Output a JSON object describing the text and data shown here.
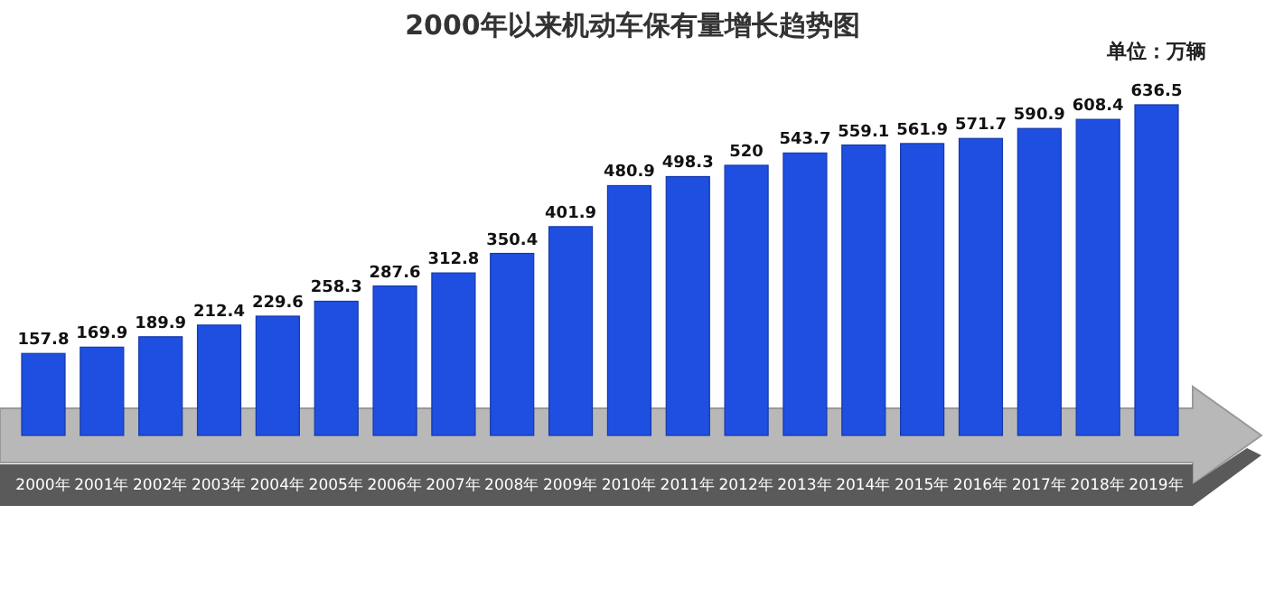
{
  "chart_data": {
    "type": "bar",
    "title": "2000年以来机动车保有量增长趋势图",
    "annotations": [
      "单位：万辆"
    ],
    "categories": [
      "2000年",
      "2001年",
      "2002年",
      "2003年",
      "2004年",
      "2005年",
      "2006年",
      "2007年",
      "2008年",
      "2009年",
      "2010年",
      "2011年",
      "2012年",
      "2013年",
      "2014年",
      "2015年",
      "2016年",
      "2017年",
      "2018年",
      "2019年"
    ],
    "values": [
      157.8,
      169.9,
      189.9,
      212.4,
      229.6,
      258.3,
      287.6,
      312.8,
      350.4,
      401.9,
      480.9,
      498.3,
      520,
      543.7,
      559.1,
      561.9,
      571.7,
      590.9,
      608.4,
      636.5
    ],
    "color": "#1f4fe0",
    "data_labels": true
  }
}
